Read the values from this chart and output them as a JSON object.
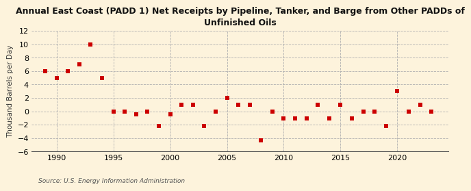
{
  "title": "Annual East Coast (PADD 1) Net Receipts by Pipeline, Tanker, and Barge from Other PADDs of\nUnfinished Oils",
  "ylabel": "Thousand Barrels per Day",
  "source": "Source: U.S. Energy Information Administration",
  "background_color": "#fdf3dc",
  "marker_color": "#cc0000",
  "years": [
    1989,
    1990,
    1991,
    1992,
    1993,
    1994,
    1995,
    1996,
    1997,
    1998,
    1999,
    2000,
    2001,
    2002,
    2003,
    2004,
    2005,
    2006,
    2007,
    2008,
    2009,
    2010,
    2011,
    2012,
    2013,
    2014,
    2015,
    2016,
    2017,
    2018,
    2019,
    2020,
    2021,
    2022,
    2023
  ],
  "values": [
    6.0,
    5.0,
    6.0,
    7.0,
    10.0,
    5.0,
    0.0,
    0.0,
    -0.5,
    0.0,
    -2.2,
    -0.5,
    1.0,
    1.0,
    -2.2,
    0.0,
    2.0,
    1.0,
    1.0,
    -4.3,
    0.0,
    -1.1,
    -1.1,
    -1.1,
    1.0,
    -1.1,
    1.0,
    -1.1,
    0.0,
    0.0,
    -2.2,
    3.0,
    0.0,
    1.0,
    0.0
  ],
  "ylim": [
    -6,
    12
  ],
  "yticks": [
    -6,
    -4,
    -2,
    0,
    2,
    4,
    6,
    8,
    10,
    12
  ],
  "xlim": [
    1987.8,
    2024.5
  ],
  "xticks": [
    1990,
    1995,
    2000,
    2005,
    2010,
    2015,
    2020
  ],
  "grid_color": "#b0b0b0",
  "grid_linestyle": "--",
  "grid_linewidth": 0.6,
  "spine_color": "#555555",
  "tick_labelsize": 8,
  "ylabel_fontsize": 7.5,
  "title_fontsize": 9,
  "source_fontsize": 6.5
}
